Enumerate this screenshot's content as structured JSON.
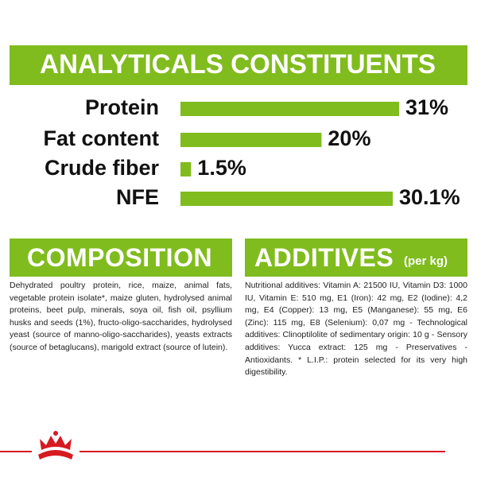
{
  "chart_data": {
    "type": "bar",
    "title": "ANALYTICALS CONSTITUENTS",
    "categories": [
      "Protein",
      "Fat content",
      "Crude fiber",
      "NFE"
    ],
    "values": [
      31,
      20,
      1.5,
      30.1
    ],
    "value_labels": [
      "31%",
      "20%",
      "1.5%",
      "30.1%"
    ],
    "color": "#80bc1e"
  },
  "composition": {
    "title": "COMPOSITION",
    "text": "Dehydrated poultry protein, rice, maize, animal fats, vegetable protein isolate*, maize gluten, hydrolysed animal proteins, beet pulp, minerals, soya oil, fish oil, psyllium husks and seeds (1%), fructo-oligo-saccharides, hydrolysed yeast (source of manno-oligo-saccharides), yeasts extracts (source of betaglucans), marigold extract (source of lutein)."
  },
  "additives": {
    "title": "ADDITIVES",
    "subtitle": "(per kg)",
    "text": "Nutritional additives: Vitamin A: 21500 IU, Vitamin D3: 1000 IU, Vitamin E: 510 mg, E1 (Iron): 42 mg, E2 (Iodine): 4,2 mg, E4 (Copper): 13 mg, E5 (Manganese): 55 mg, E6 (Zinc): 115 mg, E8 (Selenium): 0,07 mg - Technological additives: Clinoptilolite of sedimentary origin: 10 g - Sensory additives: Yucca extract: 125 mg - Preservatives - Antioxidants. * L.I.P.: protein selected for its very high digestibility."
  }
}
